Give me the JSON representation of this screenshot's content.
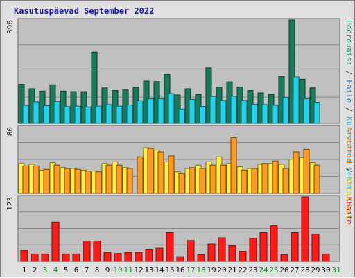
{
  "chart_data": {
    "type": "bar",
    "title": "Kasutuspäevad September 2022",
    "categories": [
      "1",
      "2",
      "3",
      "4",
      "5",
      "6",
      "7",
      "8",
      "9",
      "10",
      "11",
      "12",
      "13",
      "14",
      "15",
      "16",
      "17",
      "18",
      "19",
      "20",
      "21",
      "22",
      "23",
      "24",
      "25",
      "26",
      "27",
      "28",
      "29",
      "30",
      "31"
    ],
    "weekend_days": [
      "3",
      "4",
      "10",
      "11",
      "17",
      "18",
      "24",
      "25",
      "31"
    ],
    "panels": [
      {
        "id": "top",
        "ymax_label": "396",
        "ylim": [
          0,
          396
        ],
        "right_labels": [
          {
            "text": "Pöördumisi",
            "color": "#1a8a66"
          },
          {
            "text": " / ",
            "color": "#333333"
          },
          {
            "text": "Faile",
            "color": "#1a6fa8"
          },
          {
            "text": " / ",
            "color": "#333333"
          },
          {
            "text": "Külastatud lehti",
            "color": "#22c3ee"
          }
        ],
        "series": [
          {
            "name": "Pöördumisi",
            "color": "#1a7a5c",
            "values": [
              150,
              133,
              124,
              148,
              124,
              122,
              122,
              273,
              136,
              126,
              128,
              138,
              162,
              160,
              187,
              109,
              133,
              111,
              213,
              139,
              159,
              139,
              126,
              117,
              111,
              180,
              396,
              169,
              136,
              0,
              0
            ]
          },
          {
            "name": "Külastatud lehti",
            "color": "#22d3f0",
            "values": [
              69,
              83,
              68,
              84,
              64,
              66,
              63,
              66,
              72,
              66,
              70,
              87,
              94,
              94,
              114,
              55,
              92,
              65,
              103,
              88,
              104,
              88,
              73,
              72,
              69,
              100,
              178,
              94,
              81,
              0,
              0
            ]
          }
        ]
      },
      {
        "id": "middle",
        "ymax_label": "80",
        "ylim": [
          0,
          80
        ],
        "right_labels": [
          {
            "text": "Arvuteid",
            "color": "#e07a10"
          },
          {
            "text": " / ",
            "color": "#333333"
          },
          {
            "text": "Külastusi",
            "color": "#d6d000"
          }
        ],
        "series": [
          {
            "name": "Külastusi",
            "color": "#ffee44",
            "values": [
              36,
              35,
              28,
              37,
              31,
              30,
              28,
              27,
              36,
              38,
              31,
              0,
              55,
              52,
              38,
              26,
              30,
              34,
              38,
              44,
              36,
              32,
              30,
              35,
              36,
              35,
              41,
              43,
              37,
              0,
              0
            ]
          },
          {
            "name": "Arvuteid",
            "color": "#ff9a22",
            "values": [
              33,
              33,
              29,
              34,
              30,
              29,
              27,
              26,
              34,
              34,
              30,
              44,
              54,
              50,
              45,
              24,
              31,
              30,
              34,
              34,
              67,
              28,
              30,
              36,
              39,
              30,
              50,
              53,
              34,
              0,
              0
            ]
          }
        ]
      },
      {
        "id": "bottom",
        "ymax_label": "123",
        "ylim": [
          0,
          123
        ],
        "right_labels": [
          {
            "text": "KBaite",
            "color": "#d01818"
          }
        ],
        "series": [
          {
            "name": "KBaite",
            "color": "#ff1a1a",
            "values": [
              21,
              14,
              14,
              75,
              14,
              14,
              39,
              39,
              17,
              15,
              17,
              17,
              23,
              25,
              55,
              9,
              40,
              13,
              33,
              45,
              30,
              19,
              44,
              55,
              68,
              13,
              55,
              123,
              52,
              14,
              0
            ]
          }
        ]
      }
    ]
  }
}
